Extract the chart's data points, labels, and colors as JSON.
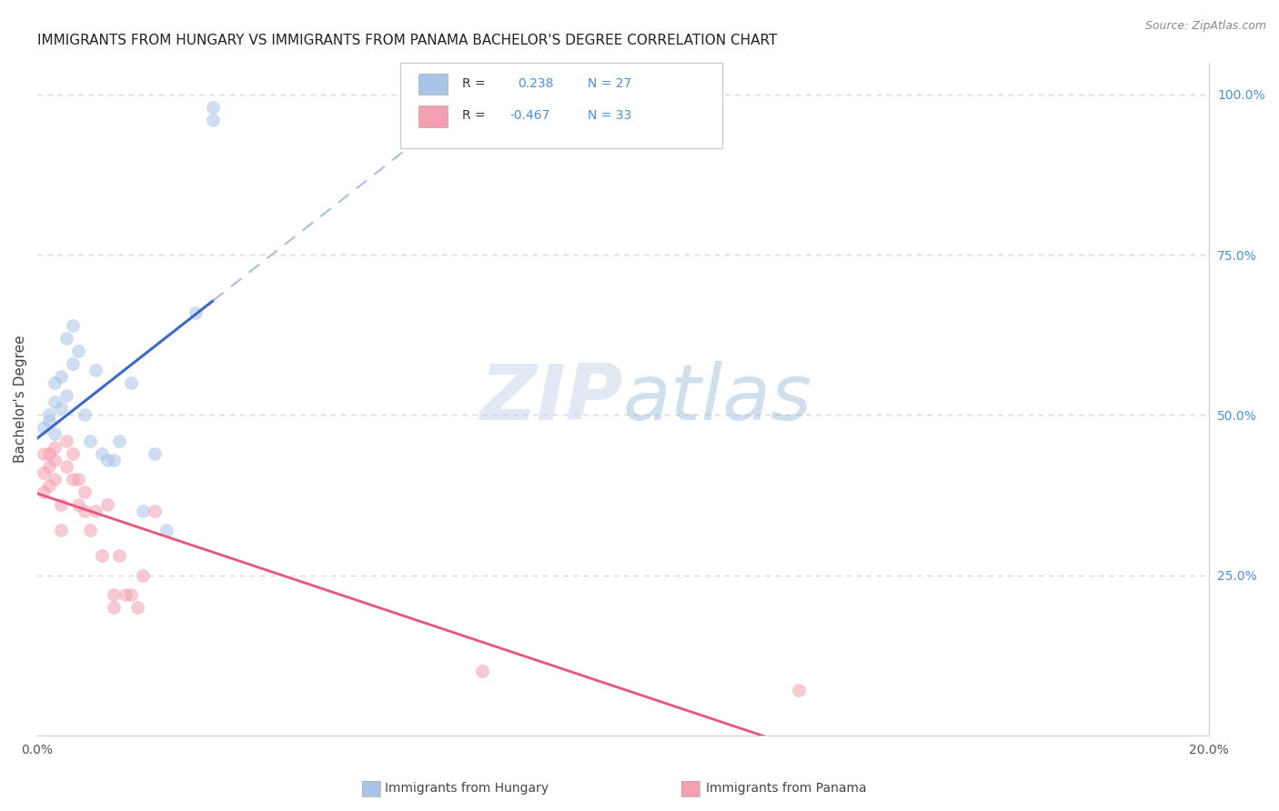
{
  "title": "IMMIGRANTS FROM HUNGARY VS IMMIGRANTS FROM PANAMA BACHELOR'S DEGREE CORRELATION CHART",
  "source": "Source: ZipAtlas.com",
  "ylabel": "Bachelor's Degree",
  "legend_label1": "Immigrants from Hungary",
  "legend_label2": "Immigrants from Panama",
  "hungary_color": "#aac4e8",
  "panama_color": "#f4a0b0",
  "hungary_line_color": "#3a6bc8",
  "panama_line_color": "#e8547a",
  "dashed_line_color": "#a8c0e0",
  "watermark_zip": "ZIP",
  "watermark_atlas": "atlas",
  "hungary_x": [
    0.001,
    0.002,
    0.002,
    0.003,
    0.003,
    0.003,
    0.004,
    0.004,
    0.005,
    0.005,
    0.006,
    0.006,
    0.007,
    0.008,
    0.009,
    0.01,
    0.011,
    0.012,
    0.013,
    0.014,
    0.016,
    0.018,
    0.02,
    0.022,
    0.027,
    0.03,
    0.03
  ],
  "hungary_y": [
    0.48,
    0.5,
    0.49,
    0.47,
    0.55,
    0.52,
    0.51,
    0.56,
    0.53,
    0.62,
    0.58,
    0.64,
    0.6,
    0.5,
    0.46,
    0.57,
    0.44,
    0.43,
    0.43,
    0.46,
    0.55,
    0.35,
    0.44,
    0.32,
    0.66,
    0.98,
    0.96
  ],
  "panama_x": [
    0.001,
    0.001,
    0.001,
    0.002,
    0.002,
    0.002,
    0.003,
    0.003,
    0.003,
    0.004,
    0.004,
    0.005,
    0.005,
    0.006,
    0.006,
    0.007,
    0.007,
    0.008,
    0.008,
    0.009,
    0.01,
    0.011,
    0.012,
    0.013,
    0.013,
    0.014,
    0.015,
    0.016,
    0.017,
    0.018,
    0.02,
    0.076,
    0.13
  ],
  "panama_y": [
    0.44,
    0.41,
    0.38,
    0.44,
    0.42,
    0.39,
    0.45,
    0.43,
    0.4,
    0.36,
    0.32,
    0.46,
    0.42,
    0.44,
    0.4,
    0.4,
    0.36,
    0.38,
    0.35,
    0.32,
    0.35,
    0.28,
    0.36,
    0.22,
    0.2,
    0.28,
    0.22,
    0.22,
    0.2,
    0.25,
    0.35,
    0.1,
    0.07
  ],
  "xlim": [
    0.0,
    0.2
  ],
  "ylim_min": 0.0,
  "ylim_max": 1.05,
  "x_ticks": [
    0.0,
    0.05,
    0.1,
    0.15,
    0.2
  ],
  "x_tick_labels": [
    "0.0%",
    "",
    "",
    "",
    "20.0%"
  ],
  "y_ticks_right": [
    0.25,
    0.5,
    0.75,
    1.0
  ],
  "y_tick_labels_right": [
    "25.0%",
    "50.0%",
    "75.0%",
    "100.0%"
  ],
  "grid_color": "#d0d8e8",
  "bg_color": "#ffffff",
  "marker_size": 100,
  "marker_alpha": 0.55,
  "title_fontsize": 11,
  "axis_label_fontsize": 11,
  "tick_color": "#555555",
  "right_tick_color": "#4a90d9",
  "legend_r1_color": "#333333",
  "legend_v1_color": "#4a90d9",
  "legend_r2_color": "#333333",
  "legend_v2_color": "#4a90d9"
}
